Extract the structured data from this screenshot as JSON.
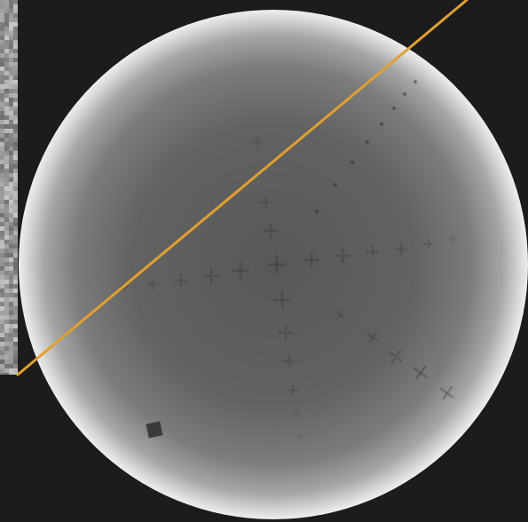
{
  "image": {
    "description_free": true,
    "background_color": "#1c1c1c",
    "disc_center_color": "#5a5a5a",
    "disc_edge_color": "#e8e8e8",
    "overlay_line_color": "#e0a030",
    "marker_color": "#2a2a2a"
  }
}
